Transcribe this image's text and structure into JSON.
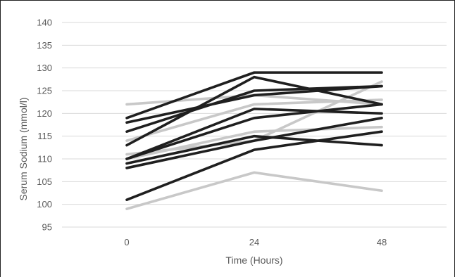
{
  "chart_data": {
    "type": "line",
    "title": "",
    "xlabel": "Time (Hours)",
    "ylabel": "Serum Sodium (mmol/l)",
    "categories": [
      "0",
      "24",
      "48"
    ],
    "ylim": [
      95,
      140
    ],
    "yticks": [
      "140",
      "135",
      "130",
      "125",
      "120",
      "115",
      "110",
      "105",
      "100",
      "95"
    ],
    "grid": true,
    "legend": "none",
    "series_colors": {
      "dark": "#1f1f1f",
      "light": "#c8c8c8"
    },
    "series": [
      {
        "style": "light",
        "values": [
          122,
          124,
          122
        ]
      },
      {
        "style": "light",
        "values": [
          114,
          122,
          123
        ]
      },
      {
        "style": "light",
        "values": [
          110,
          116,
          117
        ]
      },
      {
        "style": "light",
        "values": [
          111,
          114,
          127
        ]
      },
      {
        "style": "light",
        "values": [
          99,
          107,
          103
        ]
      },
      {
        "style": "dark",
        "values": [
          119,
          129,
          129
        ]
      },
      {
        "style": "dark",
        "values": [
          118,
          124,
          126
        ]
      },
      {
        "style": "dark",
        "values": [
          116,
          125,
          126
        ]
      },
      {
        "style": "dark",
        "values": [
          113,
          128,
          122
        ]
      },
      {
        "style": "dark",
        "values": [
          110,
          121,
          120
        ]
      },
      {
        "style": "dark",
        "values": [
          110,
          119,
          122
        ]
      },
      {
        "style": "dark",
        "values": [
          109,
          115,
          113
        ]
      },
      {
        "style": "dark",
        "values": [
          108,
          114,
          119
        ]
      },
      {
        "style": "dark",
        "values": [
          101,
          112,
          116
        ]
      }
    ]
  }
}
